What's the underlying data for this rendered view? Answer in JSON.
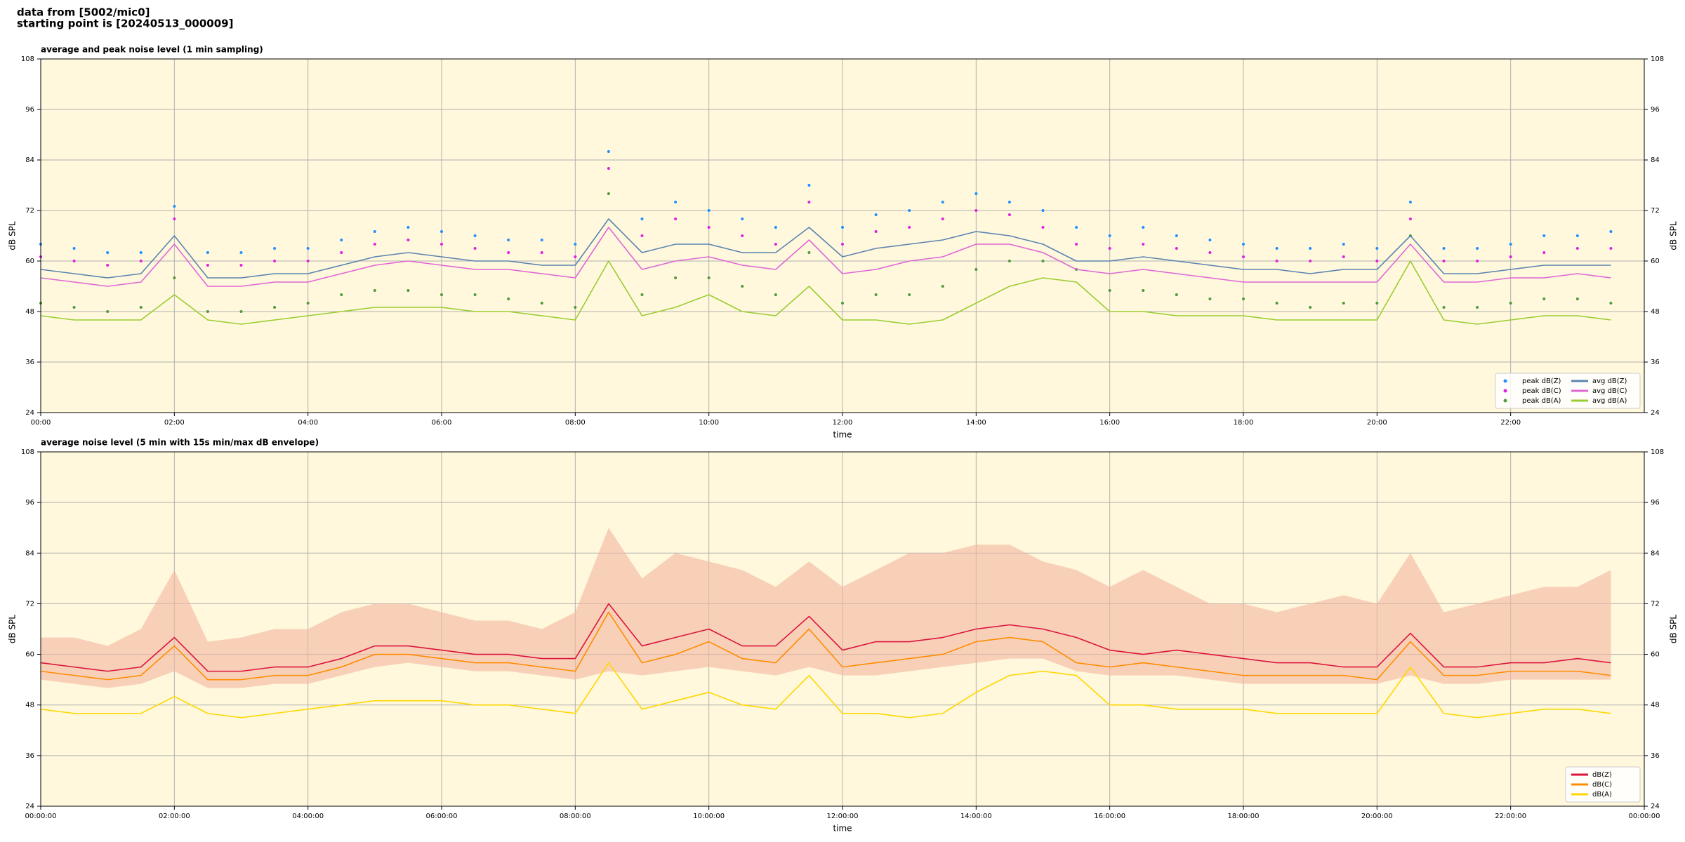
{
  "header": {
    "lines": [
      "data from [5002/mic0]",
      "starting point is [20240513_000009]"
    ]
  },
  "chart_data": [
    {
      "type": "line",
      "title": "average and peak noise level (1 min sampling)",
      "xlabel": "time",
      "ylabel": "dB SPL",
      "x": [
        0,
        0.5,
        1,
        1.5,
        2,
        2.5,
        3,
        3.5,
        4,
        4.5,
        5,
        5.5,
        6,
        6.5,
        7,
        7.5,
        8,
        8.5,
        9,
        9.5,
        10,
        10.5,
        11,
        11.5,
        12,
        12.5,
        13,
        13.5,
        14,
        14.5,
        15,
        15.5,
        16,
        16.5,
        17,
        17.5,
        18,
        18.5,
        19,
        19.5,
        20,
        20.5,
        21,
        21.5,
        22,
        22.5,
        23,
        23.5
      ],
      "xlim": [
        0,
        24
      ],
      "xticks": [
        {
          "value": 0,
          "label": "00:00"
        },
        {
          "value": 2,
          "label": "02:00"
        },
        {
          "value": 4,
          "label": "04:00"
        },
        {
          "value": 6,
          "label": "06:00"
        },
        {
          "value": 8,
          "label": "08:00"
        },
        {
          "value": 10,
          "label": "10:00"
        },
        {
          "value": 12,
          "label": "12:00"
        },
        {
          "value": 14,
          "label": "14:00"
        },
        {
          "value": 16,
          "label": "16:00"
        },
        {
          "value": 18,
          "label": "18:00"
        },
        {
          "value": 20,
          "label": "20:00"
        },
        {
          "value": 22,
          "label": "22:00"
        }
      ],
      "ylim": [
        24,
        108
      ],
      "yticks": [
        24,
        36,
        48,
        60,
        72,
        84,
        96,
        108
      ],
      "grid": true,
      "legend": "lower right",
      "background": "#fff8dc",
      "series": [
        {
          "name": "peak dB(Z)",
          "mark": "dot",
          "color": "#1e90ff",
          "values": [
            64,
            63,
            62,
            62,
            73,
            62,
            62,
            63,
            63,
            65,
            67,
            68,
            67,
            66,
            65,
            65,
            64,
            86,
            70,
            74,
            72,
            70,
            68,
            78,
            68,
            71,
            72,
            74,
            76,
            74,
            72,
            68,
            66,
            68,
            66,
            65,
            64,
            63,
            63,
            64,
            63,
            74,
            63,
            63,
            64,
            66,
            66,
            67
          ]
        },
        {
          "name": "peak dB(C)",
          "mark": "dot",
          "color": "#e020e0",
          "values": [
            61,
            60,
            59,
            60,
            70,
            59,
            59,
            60,
            60,
            62,
            64,
            65,
            64,
            63,
            62,
            62,
            61,
            82,
            66,
            70,
            68,
            66,
            64,
            74,
            64,
            67,
            68,
            70,
            72,
            71,
            68,
            64,
            63,
            64,
            63,
            62,
            61,
            60,
            60,
            61,
            60,
            70,
            60,
            60,
            61,
            62,
            63,
            63
          ]
        },
        {
          "name": "peak dB(A)",
          "mark": "dot",
          "color": "#4f9a3a",
          "values": [
            50,
            49,
            48,
            49,
            56,
            48,
            48,
            49,
            50,
            52,
            53,
            53,
            52,
            52,
            51,
            50,
            49,
            76,
            52,
            56,
            56,
            54,
            52,
            62,
            50,
            52,
            52,
            54,
            58,
            60,
            60,
            58,
            53,
            53,
            52,
            51,
            51,
            50,
            49,
            50,
            50,
            66,
            49,
            49,
            50,
            51,
            51,
            50
          ]
        },
        {
          "name": "avg dB(Z)",
          "mark": "line",
          "color": "#5b84b1",
          "values": [
            58,
            57,
            56,
            57,
            66,
            56,
            56,
            57,
            57,
            59,
            61,
            62,
            61,
            60,
            60,
            59,
            59,
            70,
            62,
            64,
            64,
            62,
            62,
            68,
            61,
            63,
            64,
            65,
            67,
            66,
            64,
            60,
            60,
            61,
            60,
            59,
            58,
            58,
            57,
            58,
            58,
            66,
            57,
            57,
            58,
            59,
            59,
            59
          ]
        },
        {
          "name": "avg dB(C)",
          "mark": "line",
          "color": "#e066d6",
          "values": [
            56,
            55,
            54,
            55,
            64,
            54,
            54,
            55,
            55,
            57,
            59,
            60,
            59,
            58,
            58,
            57,
            56,
            68,
            58,
            60,
            61,
            59,
            58,
            65,
            57,
            58,
            60,
            61,
            64,
            64,
            62,
            58,
            57,
            58,
            57,
            56,
            55,
            55,
            55,
            55,
            55,
            64,
            55,
            55,
            56,
            56,
            57,
            56
          ]
        },
        {
          "name": "avg dB(A)",
          "mark": "line",
          "color": "#9acd32",
          "values": [
            47,
            46,
            46,
            46,
            52,
            46,
            45,
            46,
            47,
            48,
            49,
            49,
            49,
            48,
            48,
            47,
            46,
            60,
            47,
            49,
            52,
            48,
            47,
            54,
            46,
            46,
            45,
            46,
            50,
            54,
            56,
            55,
            48,
            48,
            47,
            47,
            47,
            46,
            46,
            46,
            46,
            60,
            46,
            45,
            46,
            47,
            47,
            46
          ]
        }
      ]
    },
    {
      "type": "line",
      "title": "average noise level (5 min with 15s min/max dB envelope)",
      "xlabel": "time",
      "ylabel": "dB SPL",
      "x": [
        0,
        0.5,
        1,
        1.5,
        2,
        2.5,
        3,
        3.5,
        4,
        4.5,
        5,
        5.5,
        6,
        6.5,
        7,
        7.5,
        8,
        8.5,
        9,
        9.5,
        10,
        10.5,
        11,
        11.5,
        12,
        12.5,
        13,
        13.5,
        14,
        14.5,
        15,
        15.5,
        16,
        16.5,
        17,
        17.5,
        18,
        18.5,
        19,
        19.5,
        20,
        20.5,
        21,
        21.5,
        22,
        22.5,
        23,
        23.5
      ],
      "xlim": [
        0,
        24
      ],
      "xticks": [
        {
          "value": 0,
          "label": "00:00:00"
        },
        {
          "value": 2,
          "label": "02:00:00"
        },
        {
          "value": 4,
          "label": "04:00:00"
        },
        {
          "value": 6,
          "label": "06:00:00"
        },
        {
          "value": 8,
          "label": "08:00:00"
        },
        {
          "value": 10,
          "label": "10:00:00"
        },
        {
          "value": 12,
          "label": "12:00:00"
        },
        {
          "value": 14,
          "label": "14:00:00"
        },
        {
          "value": 16,
          "label": "16:00:00"
        },
        {
          "value": 18,
          "label": "18:00:00"
        },
        {
          "value": 20,
          "label": "20:00:00"
        },
        {
          "value": 22,
          "label": "22:00:00"
        },
        {
          "value": 24,
          "label": "00:00:00"
        }
      ],
      "ylim": [
        24,
        108
      ],
      "yticks": [
        24,
        36,
        48,
        60,
        72,
        84,
        96,
        108
      ],
      "grid": true,
      "legend": "lower right",
      "background": "#fff8dc",
      "envelope": {
        "color": "#f4b6a0",
        "lower": [
          54,
          53,
          52,
          53,
          56,
          52,
          52,
          53,
          53,
          55,
          57,
          58,
          57,
          56,
          56,
          55,
          54,
          56,
          55,
          56,
          57,
          56,
          55,
          57,
          55,
          55,
          56,
          57,
          58,
          59,
          59,
          56,
          55,
          55,
          55,
          54,
          53,
          53,
          53,
          53,
          53,
          55,
          53,
          53,
          54,
          54,
          54,
          54
        ],
        "upper": [
          64,
          64,
          62,
          66,
          80,
          63,
          64,
          66,
          66,
          70,
          72,
          72,
          70,
          68,
          68,
          66,
          70,
          90,
          78,
          84,
          82,
          80,
          76,
          82,
          76,
          80,
          84,
          84,
          86,
          86,
          82,
          80,
          76,
          80,
          76,
          72,
          72,
          70,
          72,
          74,
          72,
          84,
          70,
          72,
          74,
          76,
          76,
          80
        ]
      },
      "series": [
        {
          "name": "dB(Z)",
          "mark": "line",
          "color": "#dc143c",
          "values": [
            58,
            57,
            56,
            57,
            64,
            56,
            56,
            57,
            57,
            59,
            62,
            62,
            61,
            60,
            60,
            59,
            59,
            72,
            62,
            64,
            66,
            62,
            62,
            69,
            61,
            63,
            63,
            64,
            66,
            67,
            66,
            64,
            61,
            60,
            61,
            60,
            59,
            58,
            58,
            57,
            57,
            65,
            57,
            57,
            58,
            58,
            59,
            58
          ]
        },
        {
          "name": "dB(C)",
          "mark": "line",
          "color": "#ff8c00",
          "values": [
            56,
            55,
            54,
            55,
            62,
            54,
            54,
            55,
            55,
            57,
            60,
            60,
            59,
            58,
            58,
            57,
            56,
            70,
            58,
            60,
            63,
            59,
            58,
            66,
            57,
            58,
            59,
            60,
            63,
            64,
            63,
            58,
            57,
            58,
            57,
            56,
            55,
            55,
            55,
            55,
            54,
            63,
            55,
            55,
            56,
            56,
            56,
            55
          ]
        },
        {
          "name": "dB(A)",
          "mark": "line",
          "color": "#ffd700",
          "values": [
            47,
            46,
            46,
            46,
            50,
            46,
            45,
            46,
            47,
            48,
            49,
            49,
            49,
            48,
            48,
            47,
            46,
            58,
            47,
            49,
            51,
            48,
            47,
            55,
            46,
            46,
            45,
            46,
            51,
            55,
            56,
            55,
            48,
            48,
            47,
            47,
            47,
            46,
            46,
            46,
            46,
            57,
            46,
            45,
            46,
            47,
            47,
            46
          ]
        }
      ]
    }
  ]
}
